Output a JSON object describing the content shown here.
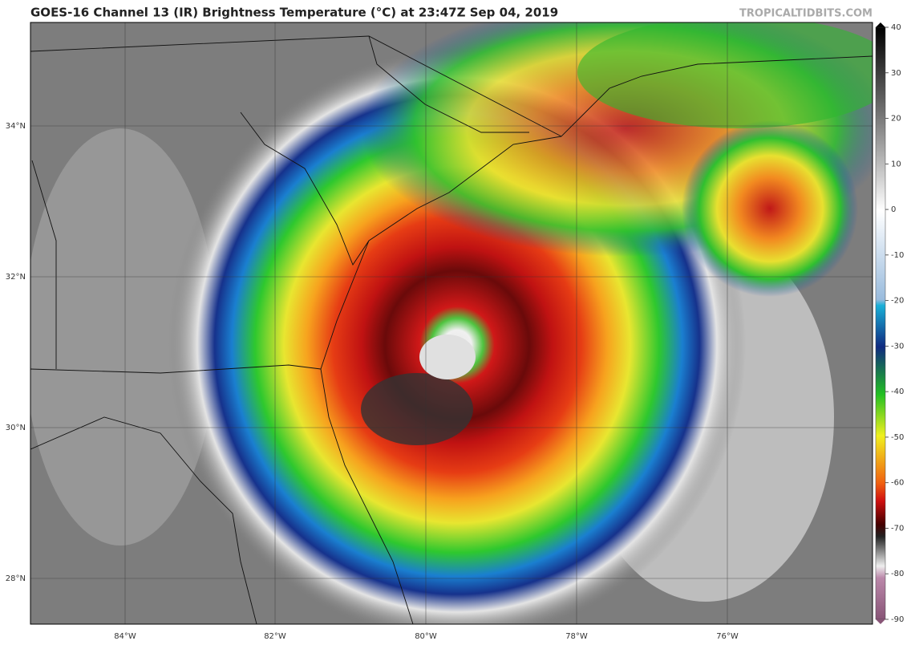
{
  "header": {
    "title": "GOES-16 Channel 13 (IR) Brightness Temperature (°C) at 23:47Z Sep 04, 2019",
    "watermark": "TROPICALTIDBITS.COM"
  },
  "map": {
    "latitude_labels": [
      "34°N",
      "32°N",
      "30°N",
      "28°N"
    ],
    "longitude_labels": [
      "84°W",
      "82°W",
      "80°W",
      "78°W",
      "76°W"
    ]
  },
  "colorbar": {
    "range": [
      -90,
      40
    ],
    "ticks": [
      40,
      30,
      20,
      10,
      0,
      -10,
      -20,
      -30,
      -40,
      -50,
      -60,
      -70,
      -80,
      -90
    ]
  }
}
